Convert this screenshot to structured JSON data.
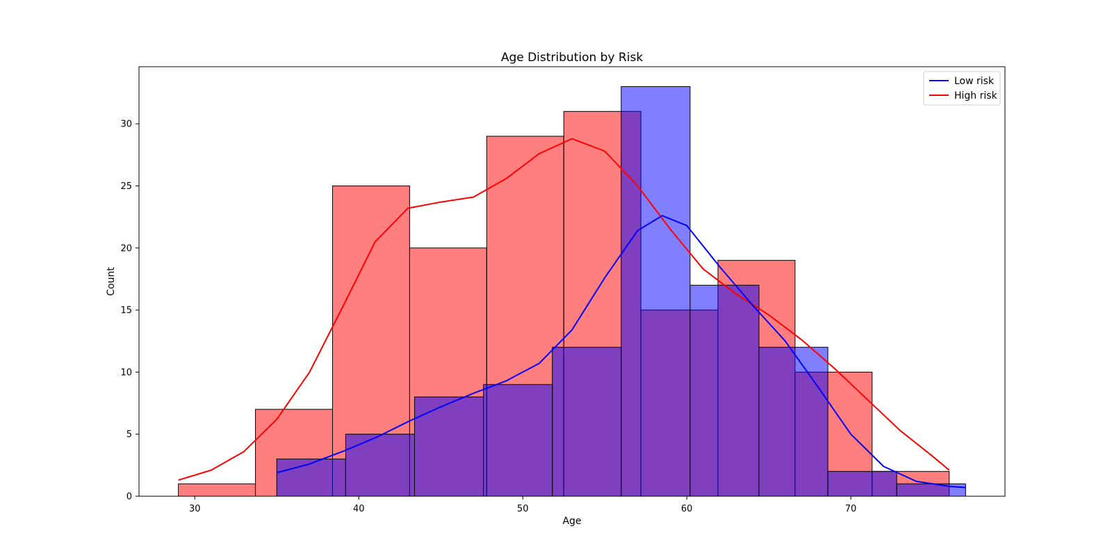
{
  "chart_data": {
    "type": "bar",
    "title": "Age Distribution by Risk",
    "xlabel": "Age",
    "ylabel": "Count",
    "xlim": [
      26.6,
      79.4
    ],
    "ylim": [
      0,
      34.6
    ],
    "xticks": [
      30,
      40,
      50,
      60,
      70
    ],
    "yticks": [
      0,
      5,
      10,
      15,
      20,
      25,
      30
    ],
    "grid": false,
    "legend_position": "top-right",
    "series": [
      {
        "name": "High risk",
        "color": "#ff0000",
        "bin_edges": [
          29.0,
          33.7,
          38.4,
          43.1,
          47.8,
          52.5,
          57.2,
          61.9,
          66.6,
          71.3,
          76.0
        ],
        "counts": [
          1,
          7,
          25,
          20,
          29,
          31,
          15,
          19,
          10,
          2
        ],
        "kde": [
          [
            29,
            1.3
          ],
          [
            31,
            2.1
          ],
          [
            33,
            3.6
          ],
          [
            35,
            6.2
          ],
          [
            37,
            10.0
          ],
          [
            39,
            15.2
          ],
          [
            41,
            20.5
          ],
          [
            43,
            23.2
          ],
          [
            45,
            23.7
          ],
          [
            47,
            24.1
          ],
          [
            49,
            25.6
          ],
          [
            51,
            27.6
          ],
          [
            53,
            28.8
          ],
          [
            55,
            27.8
          ],
          [
            57,
            25.0
          ],
          [
            59,
            21.5
          ],
          [
            61,
            18.3
          ],
          [
            63,
            16.3
          ],
          [
            65,
            14.6
          ],
          [
            67,
            12.6
          ],
          [
            69,
            10.3
          ],
          [
            71,
            7.8
          ],
          [
            73,
            5.3
          ],
          [
            75,
            3.2
          ],
          [
            76,
            2.1
          ]
        ]
      },
      {
        "name": "Low risk",
        "color": "#0000ff",
        "bin_edges": [
          35.0,
          39.2,
          43.4,
          47.6,
          51.8,
          56.0,
          60.2,
          64.4,
          68.6,
          72.8,
          77.0
        ],
        "counts": [
          3,
          5,
          8,
          9,
          12,
          33,
          17,
          12,
          2,
          1
        ],
        "kde": [
          [
            35,
            1.9
          ],
          [
            37,
            2.6
          ],
          [
            39,
            3.6
          ],
          [
            41,
            4.7
          ],
          [
            43,
            6.0
          ],
          [
            45,
            7.2
          ],
          [
            47,
            8.3
          ],
          [
            49,
            9.3
          ],
          [
            51,
            10.7
          ],
          [
            53,
            13.4
          ],
          [
            55,
            17.6
          ],
          [
            57,
            21.4
          ],
          [
            58.5,
            22.6
          ],
          [
            60,
            21.8
          ],
          [
            62,
            18.5
          ],
          [
            64,
            15.4
          ],
          [
            66,
            12.5
          ],
          [
            68,
            8.8
          ],
          [
            70,
            5.0
          ],
          [
            72,
            2.4
          ],
          [
            74,
            1.2
          ],
          [
            76,
            0.8
          ],
          [
            77,
            0.7
          ]
        ]
      }
    ]
  }
}
